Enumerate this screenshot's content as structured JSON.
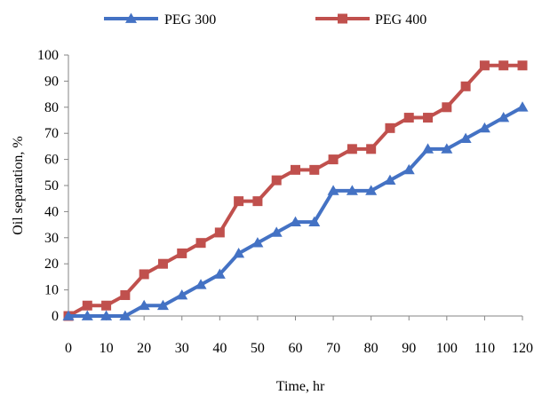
{
  "chart_data": {
    "type": "line",
    "title": "",
    "xlabel": "Time, hr",
    "ylabel": "Oil separation, %",
    "xlim": [
      0,
      120
    ],
    "ylim": [
      0,
      100
    ],
    "x_ticks": [
      0,
      10,
      20,
      30,
      40,
      50,
      60,
      70,
      80,
      90,
      100,
      110,
      120
    ],
    "y_ticks": [
      0,
      10,
      20,
      30,
      40,
      50,
      60,
      70,
      80,
      90,
      100
    ],
    "grid": false,
    "legend_position": "top",
    "x": [
      0,
      5,
      10,
      15,
      20,
      25,
      30,
      35,
      40,
      45,
      50,
      55,
      60,
      65,
      70,
      75,
      80,
      85,
      90,
      95,
      100,
      105,
      110,
      115,
      120
    ],
    "series": [
      {
        "name": "PEG 300",
        "color": "#4472C4",
        "marker": "triangle",
        "values": [
          0,
          0,
          0,
          0,
          4,
          4,
          8,
          12,
          16,
          24,
          28,
          32,
          36,
          36,
          48,
          48,
          48,
          52,
          56,
          64,
          64,
          68,
          72,
          76,
          80
        ]
      },
      {
        "name": "PEG 400",
        "color": "#C0504D",
        "marker": "square",
        "values": [
          0,
          4,
          4,
          8,
          16,
          20,
          24,
          28,
          32,
          44,
          44,
          52,
          56,
          56,
          60,
          64,
          64,
          72,
          76,
          76,
          80,
          88,
          96,
          96,
          96
        ]
      }
    ]
  }
}
